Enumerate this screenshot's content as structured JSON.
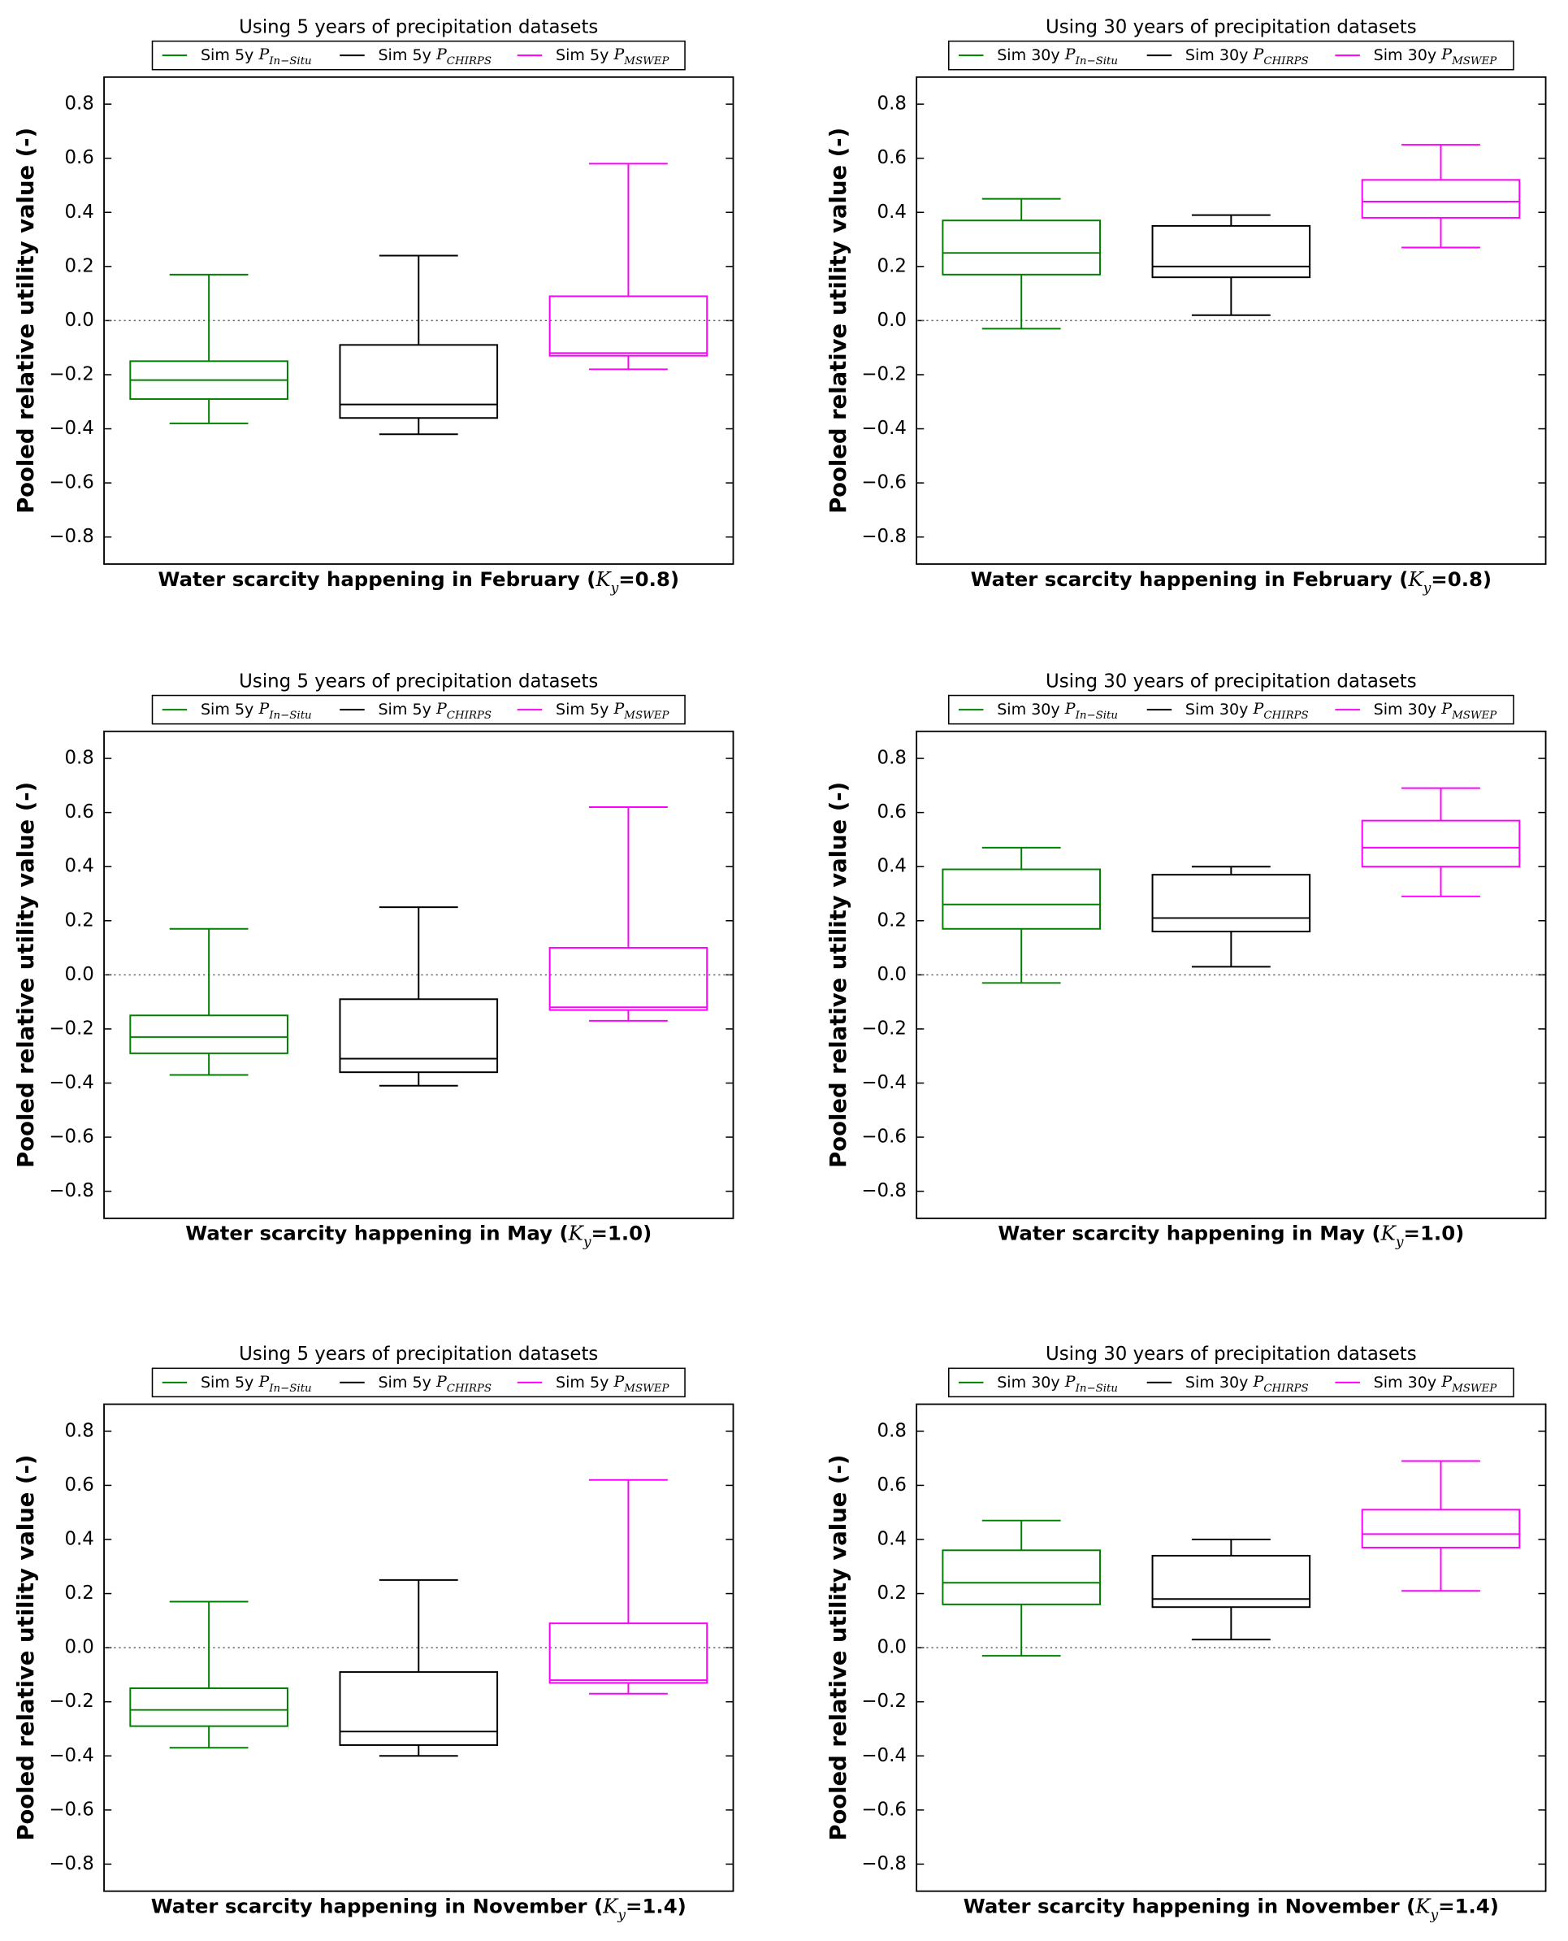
{
  "chart_data": [
    {
      "type": "box",
      "title": "Using 5 years of precipitation datasets",
      "xlabel": {
        "text": "Water scarcity happening in February (",
        "symbol": "K",
        "subscript": "y",
        "suffix": "=0.8)"
      },
      "ylabel": "Pooled relative utility value (-)",
      "ylim": [
        -0.9,
        0.9
      ],
      "yticks": [
        {
          "value": -0.8,
          "label": "−0.8"
        },
        {
          "value": -0.6,
          "label": "−0.6"
        },
        {
          "value": -0.4,
          "label": "−0.4"
        },
        {
          "value": -0.2,
          "label": "−0.2"
        },
        {
          "value": 0,
          "label": "0.0"
        },
        0.2,
        0.4,
        0.6,
        0.8
      ],
      "reference_line": 0,
      "series": [
        {
          "name": "Sim 5y",
          "symbol": "P",
          "subscript": "In−Situ",
          "color": "#008000",
          "stats": [
            -0.38,
            -0.29,
            -0.22,
            -0.15,
            0.17
          ]
        },
        {
          "name": "Sim 5y",
          "symbol": "P",
          "subscript": "CHIRPS",
          "color": "#000000",
          "stats": [
            -0.42,
            -0.36,
            -0.31,
            -0.09,
            0.24
          ]
        },
        {
          "name": "Sim 5y",
          "symbol": "P",
          "subscript": "MSWEP",
          "color": "#ff00ff",
          "stats": [
            -0.18,
            -0.13,
            -0.12,
            0.09,
            0.58
          ]
        }
      ]
    },
    {
      "type": "box",
      "title": "Using 30 years of precipitation datasets",
      "xlabel": {
        "text": "Water scarcity happening in February (",
        "symbol": "K",
        "subscript": "y",
        "suffix": "=0.8)"
      },
      "ylabel": "Pooled relative utility value (-)",
      "ylim": [
        -0.9,
        0.9
      ],
      "yticks": [
        {
          "value": -0.8,
          "label": "−0.8"
        },
        {
          "value": -0.6,
          "label": "−0.6"
        },
        {
          "value": -0.4,
          "label": "−0.4"
        },
        {
          "value": -0.2,
          "label": "−0.2"
        },
        {
          "value": 0,
          "label": "0.0"
        },
        0.2,
        0.4,
        0.6,
        0.8
      ],
      "reference_line": 0,
      "series": [
        {
          "name": "Sim 30y",
          "symbol": "P",
          "subscript": "In−Situ",
          "color": "#008000",
          "stats": [
            -0.03,
            0.17,
            0.25,
            0.37,
            0.45
          ]
        },
        {
          "name": "Sim 30y",
          "symbol": "P",
          "subscript": "CHIRPS",
          "color": "#000000",
          "stats": [
            0.02,
            0.16,
            0.2,
            0.35,
            0.39
          ]
        },
        {
          "name": "Sim 30y",
          "symbol": "P",
          "subscript": "MSWEP",
          "color": "#ff00ff",
          "stats": [
            0.27,
            0.38,
            0.44,
            0.52,
            0.65
          ]
        }
      ]
    },
    {
      "type": "box",
      "title": "Using 5 years of precipitation datasets",
      "xlabel": {
        "text": "Water scarcity happening in May (",
        "symbol": "K",
        "subscript": "y",
        "suffix": "=1.0)"
      },
      "ylabel": "Pooled relative utility value (-)",
      "ylim": [
        -0.9,
        0.9
      ],
      "yticks": [
        {
          "value": -0.8,
          "label": "−0.8"
        },
        {
          "value": -0.6,
          "label": "−0.6"
        },
        {
          "value": -0.4,
          "label": "−0.4"
        },
        {
          "value": -0.2,
          "label": "−0.2"
        },
        {
          "value": 0,
          "label": "0.0"
        },
        0.2,
        0.4,
        0.6,
        0.8
      ],
      "reference_line": 0,
      "series": [
        {
          "name": "Sim 5y",
          "symbol": "P",
          "subscript": "In−Situ",
          "color": "#008000",
          "stats": [
            -0.37,
            -0.29,
            -0.23,
            -0.15,
            0.17
          ]
        },
        {
          "name": "Sim 5y",
          "symbol": "P",
          "subscript": "CHIRPS",
          "color": "#000000",
          "stats": [
            -0.41,
            -0.36,
            -0.31,
            -0.09,
            0.25
          ]
        },
        {
          "name": "Sim 5y",
          "symbol": "P",
          "subscript": "MSWEP",
          "color": "#ff00ff",
          "stats": [
            -0.17,
            -0.13,
            -0.12,
            0.1,
            0.62
          ]
        }
      ]
    },
    {
      "type": "box",
      "title": "Using 30 years of precipitation datasets",
      "xlabel": {
        "text": "Water scarcity happening in May (",
        "symbol": "K",
        "subscript": "y",
        "suffix": "=1.0)"
      },
      "ylabel": "Pooled relative utility value (-)",
      "ylim": [
        -0.9,
        0.9
      ],
      "yticks": [
        {
          "value": -0.8,
          "label": "−0.8"
        },
        {
          "value": -0.6,
          "label": "−0.6"
        },
        {
          "value": -0.4,
          "label": "−0.4"
        },
        {
          "value": -0.2,
          "label": "−0.2"
        },
        {
          "value": 0,
          "label": "0.0"
        },
        0.2,
        0.4,
        0.6,
        0.8
      ],
      "reference_line": 0,
      "series": [
        {
          "name": "Sim 30y",
          "symbol": "P",
          "subscript": "In−Situ",
          "color": "#008000",
          "stats": [
            -0.03,
            0.17,
            0.26,
            0.39,
            0.47
          ]
        },
        {
          "name": "Sim 30y",
          "symbol": "P",
          "subscript": "CHIRPS",
          "color": "#000000",
          "stats": [
            0.03,
            0.16,
            0.21,
            0.37,
            0.4
          ]
        },
        {
          "name": "Sim 30y",
          "symbol": "P",
          "subscript": "MSWEP",
          "color": "#ff00ff",
          "stats": [
            0.29,
            0.4,
            0.47,
            0.57,
            0.69
          ]
        }
      ]
    },
    {
      "type": "box",
      "title": "Using 5 years of precipitation datasets",
      "xlabel": {
        "text": "Water scarcity happening in November (",
        "symbol": "K",
        "subscript": "y",
        "suffix": "=1.4)"
      },
      "ylabel": "Pooled relative utility value (-)",
      "ylim": [
        -0.9,
        0.9
      ],
      "yticks": [
        {
          "value": -0.8,
          "label": "−0.8"
        },
        {
          "value": -0.6,
          "label": "−0.6"
        },
        {
          "value": -0.4,
          "label": "−0.4"
        },
        {
          "value": -0.2,
          "label": "−0.2"
        },
        {
          "value": 0,
          "label": "0.0"
        },
        0.2,
        0.4,
        0.6,
        0.8
      ],
      "reference_line": 0,
      "series": [
        {
          "name": "Sim 5y",
          "symbol": "P",
          "subscript": "In−Situ",
          "color": "#008000",
          "stats": [
            -0.37,
            -0.29,
            -0.23,
            -0.15,
            0.17
          ]
        },
        {
          "name": "Sim 5y",
          "symbol": "P",
          "subscript": "CHIRPS",
          "color": "#000000",
          "stats": [
            -0.4,
            -0.36,
            -0.31,
            -0.09,
            0.25
          ]
        },
        {
          "name": "Sim 5y",
          "symbol": "P",
          "subscript": "MSWEP",
          "color": "#ff00ff",
          "stats": [
            -0.17,
            -0.13,
            -0.12,
            0.09,
            0.62
          ]
        }
      ]
    },
    {
      "type": "box",
      "title": "Using 30 years of precipitation datasets",
      "xlabel": {
        "text": "Water scarcity happening in November (",
        "symbol": "K",
        "subscript": "y",
        "suffix": "=1.4)"
      },
      "ylabel": "Pooled relative utility value (-)",
      "ylim": [
        -0.9,
        0.9
      ],
      "yticks": [
        {
          "value": -0.8,
          "label": "−0.8"
        },
        {
          "value": -0.6,
          "label": "−0.6"
        },
        {
          "value": -0.4,
          "label": "−0.4"
        },
        {
          "value": -0.2,
          "label": "−0.2"
        },
        {
          "value": 0,
          "label": "0.0"
        },
        0.2,
        0.4,
        0.6,
        0.8
      ],
      "reference_line": 0,
      "series": [
        {
          "name": "Sim 30y",
          "symbol": "P",
          "subscript": "In−Situ",
          "color": "#008000",
          "stats": [
            -0.03,
            0.16,
            0.24,
            0.36,
            0.47
          ]
        },
        {
          "name": "Sim 30y",
          "symbol": "P",
          "subscript": "CHIRPS",
          "color": "#000000",
          "stats": [
            0.03,
            0.15,
            0.18,
            0.34,
            0.4
          ]
        },
        {
          "name": "Sim 30y",
          "symbol": "P",
          "subscript": "MSWEP",
          "color": "#ff00ff",
          "stats": [
            0.21,
            0.37,
            0.42,
            0.51,
            0.69
          ]
        }
      ]
    }
  ]
}
